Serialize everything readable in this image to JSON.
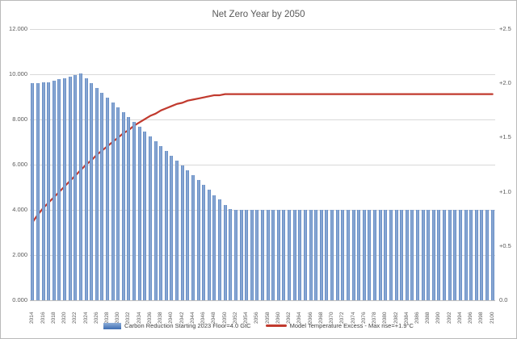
{
  "title": "Net Zero Year by 2050",
  "colors": {
    "bar_dark": "#3e6db3",
    "bar_center": "#eaf1f9",
    "bar_edge_light": "#8cadd8",
    "line_red": "#c13a2e",
    "gridline": "#d9d9d9",
    "axis_text": "#595959"
  },
  "legend": [
    {
      "label": "Carbon Reduction Starting 2023 Floor=4.0 GtC",
      "type": "bar"
    },
    {
      "label": "Model Temperature Excess - Max rise=+1.9°C",
      "type": "line"
    }
  ],
  "chart_data": {
    "type": "bar",
    "title": "Net Zero Year by 2050",
    "x_label_step": 2,
    "grid": "horizontal",
    "legend_position": "bottom",
    "x": [
      2014,
      2015,
      2016,
      2017,
      2018,
      2019,
      2020,
      2021,
      2022,
      2023,
      2024,
      2025,
      2026,
      2027,
      2028,
      2029,
      2030,
      2031,
      2032,
      2033,
      2034,
      2035,
      2036,
      2037,
      2038,
      2039,
      2040,
      2041,
      2042,
      2043,
      2044,
      2045,
      2046,
      2047,
      2048,
      2049,
      2050,
      2051,
      2052,
      2053,
      2054,
      2055,
      2056,
      2057,
      2058,
      2059,
      2060,
      2061,
      2062,
      2063,
      2064,
      2065,
      2066,
      2067,
      2068,
      2069,
      2070,
      2071,
      2072,
      2073,
      2074,
      2075,
      2076,
      2077,
      2078,
      2079,
      2080,
      2081,
      2082,
      2083,
      2084,
      2085,
      2086,
      2087,
      2088,
      2089,
      2090,
      2091,
      2092,
      2093,
      2094,
      2095,
      2096,
      2097,
      2098,
      2099,
      2100
    ],
    "series": [
      {
        "name": "Carbon Reduction Starting 2023 Floor=4.0 GtC",
        "type": "bar",
        "axis": "left",
        "unit": "GtC",
        "values": [
          9.62,
          9.62,
          9.63,
          9.66,
          9.72,
          9.78,
          9.83,
          9.9,
          9.97,
          10.04,
          9.82,
          9.61,
          9.39,
          9.18,
          8.96,
          8.75,
          8.53,
          8.32,
          8.1,
          7.89,
          7.67,
          7.46,
          7.24,
          7.03,
          6.81,
          6.6,
          6.38,
          6.17,
          5.95,
          5.74,
          5.52,
          5.31,
          5.09,
          4.88,
          4.66,
          4.45,
          4.23,
          4.02,
          4,
          4,
          4,
          4,
          4,
          4,
          4,
          4,
          4,
          4,
          4,
          4,
          4,
          4,
          4,
          4,
          4,
          4,
          4,
          4,
          4,
          4,
          4,
          4,
          4,
          4,
          4,
          4,
          4,
          4,
          4,
          4,
          4,
          4,
          4,
          4,
          4,
          4,
          4,
          4,
          4,
          4,
          4,
          4,
          4,
          4,
          4,
          4,
          4
        ]
      },
      {
        "name": "Model Temperature Excess - Max rise=+1.9°C",
        "type": "line",
        "axis": "right",
        "unit": "°C",
        "values": [
          0.72,
          0.79,
          0.85,
          0.9,
          0.95,
          1,
          1.05,
          1.1,
          1.15,
          1.2,
          1.25,
          1.29,
          1.34,
          1.38,
          1.42,
          1.46,
          1.5,
          1.54,
          1.57,
          1.61,
          1.64,
          1.67,
          1.7,
          1.72,
          1.75,
          1.77,
          1.79,
          1.81,
          1.82,
          1.84,
          1.85,
          1.86,
          1.87,
          1.88,
          1.89,
          1.89,
          1.9,
          1.9,
          1.9,
          1.9,
          1.9,
          1.9,
          1.9,
          1.9,
          1.9,
          1.9,
          1.9,
          1.9,
          1.9,
          1.9,
          1.9,
          1.9,
          1.9,
          1.9,
          1.9,
          1.9,
          1.9,
          1.9,
          1.9,
          1.9,
          1.9,
          1.9,
          1.9,
          1.9,
          1.9,
          1.9,
          1.9,
          1.9,
          1.9,
          1.9,
          1.9,
          1.9,
          1.9,
          1.9,
          1.9,
          1.9,
          1.9,
          1.9,
          1.9,
          1.9,
          1.9,
          1.9,
          1.9,
          1.9,
          1.9,
          1.9,
          1.9
        ]
      }
    ],
    "left_axis": {
      "max": 12,
      "min": 0,
      "ticks": [
        {
          "label": "0.000",
          "value": 0
        },
        {
          "label": "2.000",
          "value": 2
        },
        {
          "label": "4.000",
          "value": 4
        },
        {
          "label": "6.000",
          "value": 6
        },
        {
          "label": "8.000",
          "value": 8
        },
        {
          "label": "10.000",
          "value": 10
        },
        {
          "label": "12.000",
          "value": 12
        }
      ]
    },
    "right_axis": {
      "max": 2.5,
      "min": 0,
      "ticks": [
        {
          "label": "0.0",
          "value": 0
        },
        {
          "label": "+0.5",
          "value": 0.5
        },
        {
          "label": "+1.0",
          "value": 1
        },
        {
          "label": "+1.5",
          "value": 1.5
        },
        {
          "label": "+2.0",
          "value": 2
        },
        {
          "label": "+2.5",
          "value": 2.5
        }
      ]
    }
  }
}
